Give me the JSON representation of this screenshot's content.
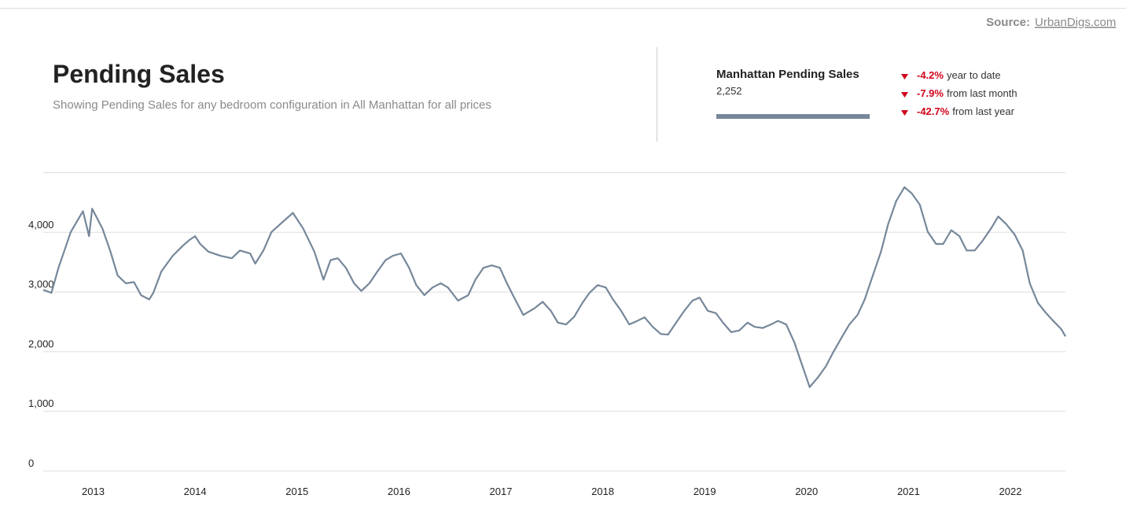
{
  "header": {
    "source_label": "Source:",
    "source_link": "UrbanDigs.com",
    "title": "Pending Sales",
    "subtitle": "Showing Pending Sales for any bedroom configuration in All Manhattan for all prices"
  },
  "summary": {
    "value": "2,252",
    "changes": [
      {
        "value": "-4.2%",
        "text": "year to date"
      },
      {
        "value": "-7.9%",
        "text": "from last month"
      },
      {
        "value": "-42.7%",
        "text": "from last year"
      }
    ]
  },
  "chart_data": {
    "type": "line",
    "x": [
      2012.51,
      2012.59,
      2012.66,
      2012.78,
      2012.9,
      2012.96,
      2012.99,
      2013.09,
      2013.17,
      2013.24,
      2013.32,
      2013.4,
      2013.47,
      2013.55,
      2013.59,
      2013.67,
      2013.78,
      2013.88,
      2013.94,
      2014.0,
      2014.05,
      2014.13,
      2014.25,
      2014.36,
      2014.44,
      2014.54,
      2014.59,
      2014.67,
      2014.75,
      2014.86,
      2014.96,
      2015.06,
      2015.17,
      2015.26,
      2015.33,
      2015.4,
      2015.48,
      2015.56,
      2015.63,
      2015.71,
      2015.79,
      2015.87,
      2015.94,
      2016.02,
      2016.1,
      2016.17,
      2016.25,
      2016.33,
      2016.41,
      2016.48,
      2016.58,
      2016.68,
      2016.75,
      2016.83,
      2016.91,
      2016.99,
      2017.06,
      2017.14,
      2017.22,
      2017.33,
      2017.41,
      2017.49,
      2017.56,
      2017.64,
      2017.72,
      2017.8,
      2017.87,
      2017.95,
      2018.03,
      2018.1,
      2018.18,
      2018.26,
      2018.34,
      2018.41,
      2018.49,
      2018.57,
      2018.64,
      2018.72,
      2018.8,
      2018.88,
      2018.95,
      2019.03,
      2019.11,
      2019.18,
      2019.26,
      2019.34,
      2019.42,
      2019.49,
      2019.57,
      2019.65,
      2019.72,
      2019.8,
      2019.88,
      2019.96,
      2020.03,
      2020.11,
      2020.19,
      2020.26,
      2020.34,
      2020.42,
      2020.5,
      2020.57,
      2020.65,
      2020.73,
      2020.8,
      2020.88,
      2020.96,
      2021.03,
      2021.11,
      2021.19,
      2021.27,
      2021.34,
      2021.42,
      2021.5,
      2021.57,
      2021.65,
      2021.73,
      2021.81,
      2021.88,
      2021.96,
      2022.04,
      2022.12,
      2022.19,
      2022.27,
      2022.35,
      2022.42,
      2022.5,
      2022.54
    ],
    "series": [
      {
        "name": "Manhattan Pending Sales",
        "color": "#76879a",
        "values": [
          3030,
          2980,
          3400,
          4000,
          4350,
          3930,
          4390,
          4060,
          3670,
          3270,
          3140,
          3160,
          2940,
          2870,
          2980,
          3340,
          3600,
          3770,
          3860,
          3930,
          3800,
          3670,
          3600,
          3560,
          3690,
          3640,
          3470,
          3690,
          4000,
          4170,
          4320,
          4060,
          3670,
          3200,
          3530,
          3560,
          3400,
          3140,
          3010,
          3140,
          3340,
          3530,
          3600,
          3640,
          3400,
          3110,
          2940,
          3070,
          3140,
          3070,
          2850,
          2940,
          3200,
          3400,
          3440,
          3400,
          3140,
          2870,
          2610,
          2720,
          2830,
          2680,
          2480,
          2450,
          2580,
          2810,
          2980,
          3110,
          3070,
          2870,
          2680,
          2450,
          2510,
          2570,
          2410,
          2290,
          2280,
          2480,
          2680,
          2850,
          2900,
          2680,
          2640,
          2480,
          2320,
          2350,
          2480,
          2410,
          2390,
          2450,
          2510,
          2450,
          2150,
          1750,
          1400,
          1560,
          1750,
          1980,
          2220,
          2450,
          2610,
          2870,
          3270,
          3670,
          4130,
          4520,
          4750,
          4650,
          4460,
          4000,
          3800,
          3800,
          4030,
          3930,
          3690,
          3690,
          3860,
          4060,
          4260,
          4130,
          3960,
          3690,
          3140,
          2810,
          2640,
          2510,
          2370,
          2250
        ]
      }
    ],
    "xlim": [
      2012.51,
      2022.54
    ],
    "xticks": [
      2013,
      2014,
      2015,
      2016,
      2017,
      2018,
      2019,
      2020,
      2021,
      2022
    ],
    "ylim": [
      0,
      5000
    ],
    "yticks": [
      0,
      {
        "value": 1000,
        "label": "1,000"
      },
      {
        "value": 2000,
        "label": "2,000"
      },
      {
        "value": 3000,
        "label": "3,000"
      },
      {
        "value": 4000,
        "label": "4,000"
      }
    ],
    "grid": true
  }
}
